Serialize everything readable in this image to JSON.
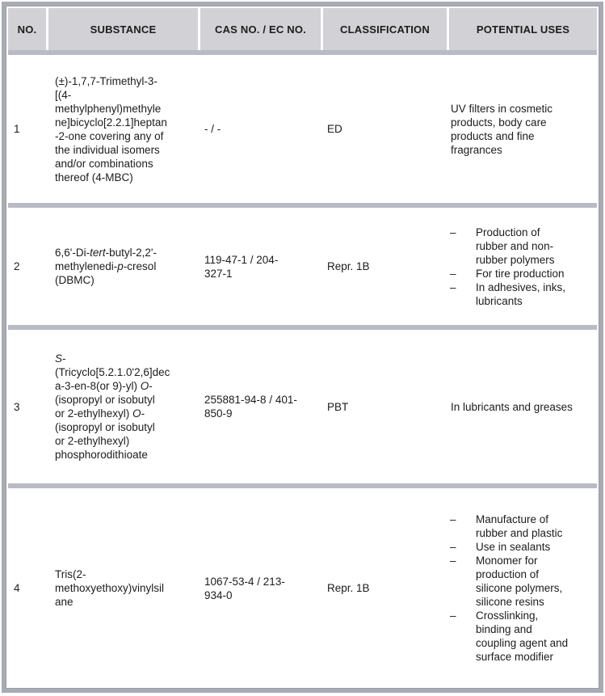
{
  "colors": {
    "border": "#a8aab4",
    "header_bg": "#d1d1d6",
    "separator": "#b9bbc4",
    "text": "#1c1c1c"
  },
  "table": {
    "bullet_char": "–",
    "headers": {
      "no": "NO.",
      "substance": "SUBSTANCE",
      "cas": "CAS NO. / EC NO.",
      "classification": "CLASSIFICATION",
      "uses": "POTENTIAL USES"
    },
    "rows": [
      {
        "no": "1",
        "substance": [
          {
            "t": "(±)-1,7,7-Trimethyl-3-\n[(4-\nmethylphenyl)methyle\nne]bicyclo[2.2.1]heptan\n-2-one covering any of\nthe individual isomers\nand/or combinations\nthereof (4-MBC)"
          }
        ],
        "cas": "- / -",
        "classification": "ED",
        "uses": {
          "text": "UV filters in cosmetic\nproducts, body care\nproducts and fine\nfragrances"
        }
      },
      {
        "no": "2",
        "substance": [
          {
            "t": "6,6'-Di-"
          },
          {
            "t": "tert",
            "i": true
          },
          {
            "t": "-butyl-2,2'-\nmethylenedi-"
          },
          {
            "t": "p",
            "i": true
          },
          {
            "t": "-cresol\n(DBMC)"
          }
        ],
        "cas": "119-47-1 / 204-\n327-1",
        "classification": "Repr. 1B",
        "uses": {
          "items": [
            "Production of\nrubber and non-\nrubber polymers",
            "For tire production",
            "In adhesives, inks,\nlubricants"
          ]
        }
      },
      {
        "no": "3",
        "substance": [
          {
            "t": "S",
            "i": true
          },
          {
            "t": "-\n(Tricyclo[5.2.1.0'2,6]dec\na-3-en-8(or 9)-yl) "
          },
          {
            "t": "O",
            "i": true
          },
          {
            "t": "-\n(isopropyl or isobutyl\nor 2-ethylhexyl) "
          },
          {
            "t": "O",
            "i": true
          },
          {
            "t": "-\n(isopropyl or isobutyl\nor 2-ethylhexyl)\nphosphorodithioate"
          }
        ],
        "cas": "255881-94-8 / 401-\n850-9",
        "classification": "PBT",
        "uses": {
          "text": "In lubricants and greases"
        }
      },
      {
        "no": "4",
        "substance": [
          {
            "t": "Tris(2-\nmethoxyethoxy)vinylsil\nane"
          }
        ],
        "cas": "1067-53-4 / 213-\n934-0",
        "classification": "Repr. 1B",
        "uses": {
          "items": [
            "Manufacture of\nrubber and plastic",
            "Use in sealants",
            "Monomer for\nproduction of\nsilicone polymers,\nsilicone resins",
            "Crosslinking,\nbinding and\ncoupling agent and\nsurface modifier"
          ]
        }
      }
    ]
  }
}
